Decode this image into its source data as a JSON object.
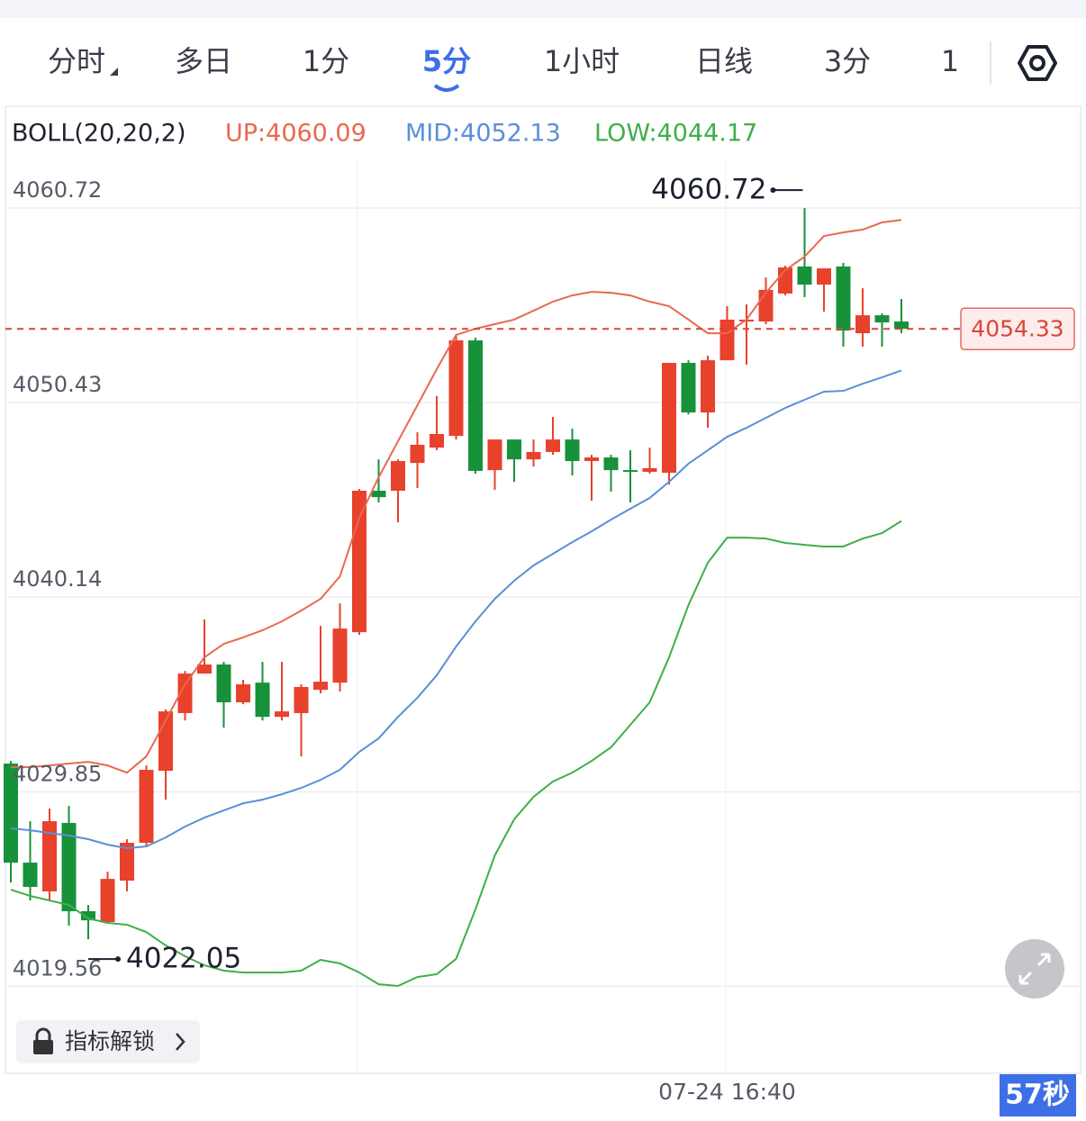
{
  "chart_data": {
    "type": "candlestick",
    "indicator": "BOLL(20,20,2)",
    "categories": [
      null,
      null,
      null,
      null,
      null,
      null,
      null,
      null,
      null,
      null,
      null,
      null,
      null,
      null,
      null,
      null,
      null,
      null,
      null,
      null,
      null,
      null,
      null,
      null,
      null,
      null,
      null,
      null,
      null,
      null,
      null,
      null,
      null,
      null,
      null,
      null,
      null,
      "07-24 16:40",
      null,
      null,
      null,
      null,
      null,
      null,
      null,
      null,
      null
    ],
    "open": [
      4031.34,
      4026.1,
      4024.58,
      4028.2,
      4023.53,
      4022.96,
      4025.15,
      4027.15,
      4030.96,
      4034.01,
      4036.1,
      4036.58,
      4034.58,
      4035.62,
      4033.81,
      4034.01,
      4035.24,
      4035.62,
      4038.29,
      4045.77,
      4045.77,
      4047.24,
      4048.05,
      4048.67,
      4053.72,
      4046.86,
      4048.48,
      4047.43,
      4047.82,
      4048.48,
      4047.34,
      4047.53,
      4046.86,
      4046.77,
      4046.72,
      4052.53,
      4049.91,
      4052.67,
      4054.72,
      4054.72,
      4056.2,
      4057.63,
      4056.67,
      4057.63,
      4054.1,
      4055.05,
      4054.72
    ],
    "high": [
      4031.48,
      4028.29,
      4028.96,
      4029.1,
      4023.86,
      4025.62,
      4027.34,
      4031.24,
      4034.2,
      4036.24,
      4038.96,
      4036.72,
      4035.77,
      4036.72,
      4036.72,
      4035.53,
      4038.62,
      4039.81,
      4045.86,
      4047.43,
      4047.43,
      4048.86,
      4050.77,
      4054.01,
      4053.86,
      4048.48,
      4048.48,
      4048.48,
      4049.67,
      4049.05,
      4047.67,
      4047.67,
      4047.91,
      4048.05,
      4052.53,
      4052.67,
      4052.91,
      4055.53,
      4055.63,
      4057.05,
      4057.67,
      4060.72,
      4057.53,
      4057.82,
      4056.48,
      4055.15,
      4055.91
    ],
    "low": [
      4025.05,
      4024.1,
      4024.1,
      4022.77,
      4022.05,
      4022.96,
      4024.58,
      4026.96,
      4029.43,
      4033.62,
      4036.1,
      4033.24,
      4034.48,
      4033.62,
      4033.62,
      4031.72,
      4035.05,
      4035.15,
      4038.15,
      4045.15,
      4044.1,
      4045.91,
      4047.91,
      4048.48,
      4046.67,
      4045.82,
      4046.24,
      4047.05,
      4047.67,
      4046.58,
      4045.24,
      4045.72,
      4045.15,
      4046.67,
      4046.1,
      4049.81,
      4049.1,
      4052.67,
      4052.43,
      4054.58,
      4056.1,
      4056.01,
      4055.24,
      4053.39,
      4053.39,
      4053.39,
      4054.1
    ],
    "close": [
      4026.1,
      4024.82,
      4028.29,
      4023.53,
      4023.05,
      4025.24,
      4027.15,
      4031.01,
      4034.1,
      4036.1,
      4036.58,
      4034.58,
      4035.53,
      4033.81,
      4034.1,
      4035.39,
      4035.67,
      4038.48,
      4045.77,
      4045.43,
      4047.34,
      4048.2,
      4048.77,
      4053.72,
      4046.82,
      4048.48,
      4047.43,
      4047.82,
      4048.48,
      4047.34,
      4047.53,
      4046.86,
      4046.77,
      4046.96,
      4052.53,
      4049.91,
      4052.67,
      4054.82,
      4054.82,
      4056.39,
      4057.58,
      4056.67,
      4057.53,
      4054.24,
      4055.05,
      4054.67,
      4054.33
    ],
    "up_color": "#e8412c",
    "down_color": "#17913a",
    "series": [
      {
        "name": "UP:4060.09",
        "color": "#e8694f",
        "values": [
          4031.15,
          4031.15,
          4031.24,
          4031.34,
          4031.43,
          4031.24,
          4030.86,
          4031.72,
          4033.62,
          4035.53,
          4036.96,
          4037.67,
          4038.01,
          4038.39,
          4038.86,
          4039.43,
          4040.05,
          4041.24,
          4044.34,
          4046.48,
          4048.39,
          4050.29,
          4052.2,
          4054.01,
          4054.34,
          4054.58,
          4054.82,
          4055.29,
          4055.77,
          4056.1,
          4056.29,
          4056.24,
          4056.1,
          4055.77,
          4055.53,
          4054.82,
          4054.1,
          4054.1,
          4054.82,
          4056.24,
          4057.43,
          4058.15,
          4059.24,
          4059.43,
          4059.58,
          4059.96,
          4060.09
        ]
      },
      {
        "name": "MID:4052.13",
        "color": "#5b8fd8",
        "values": [
          4027.91,
          4027.81,
          4027.67,
          4027.53,
          4027.34,
          4027.05,
          4026.86,
          4026.96,
          4027.43,
          4028.01,
          4028.48,
          4028.86,
          4029.24,
          4029.43,
          4029.72,
          4030.05,
          4030.48,
          4031.01,
          4031.96,
          4032.67,
          4033.81,
          4034.82,
          4036.01,
          4037.53,
          4038.86,
          4040.05,
          4041.01,
          4041.82,
          4042.43,
          4043.05,
          4043.62,
          4044.24,
          4044.82,
          4045.39,
          4046.24,
          4047.2,
          4047.91,
          4048.62,
          4049.1,
          4049.62,
          4050.15,
          4050.58,
          4051.01,
          4051.05,
          4051.43,
          4051.77,
          4052.13
        ]
      },
      {
        "name": "LOW:4044.17",
        "color": "#3fae4a",
        "values": [
          4024.67,
          4024.34,
          4024.1,
          4023.86,
          4023.15,
          4022.91,
          4022.82,
          4022.43,
          4021.72,
          4021.15,
          4020.67,
          4020.39,
          4020.29,
          4020.29,
          4020.29,
          4020.39,
          4020.96,
          4020.77,
          4020.29,
          4019.67,
          4019.58,
          4020.05,
          4020.2,
          4021.01,
          4023.63,
          4026.48,
          4028.39,
          4029.58,
          4030.39,
          4030.86,
          4031.48,
          4032.2,
          4033.39,
          4034.58,
          4036.96,
          4039.72,
          4041.96,
          4043.29,
          4043.29,
          4043.24,
          4043.01,
          4042.91,
          4042.82,
          4042.82,
          4043.24,
          4043.53,
          4044.17
        ]
      }
    ],
    "ylim": [
      4014.96,
      4063.39
    ],
    "yticks": [
      4060.72,
      4050.43,
      4040.14,
      4029.85,
      4019.56
    ],
    "grid": true,
    "last_price": 4054.33,
    "max_label": 4060.72,
    "min_label": 4022.05
  },
  "ui": {
    "tabs": [
      "分时",
      "多日",
      "1分",
      "5分",
      "1小时",
      "日线",
      "3分",
      "1"
    ],
    "active_tab": 3,
    "unlock_button": "指标解锁",
    "countdown": "57秒"
  }
}
